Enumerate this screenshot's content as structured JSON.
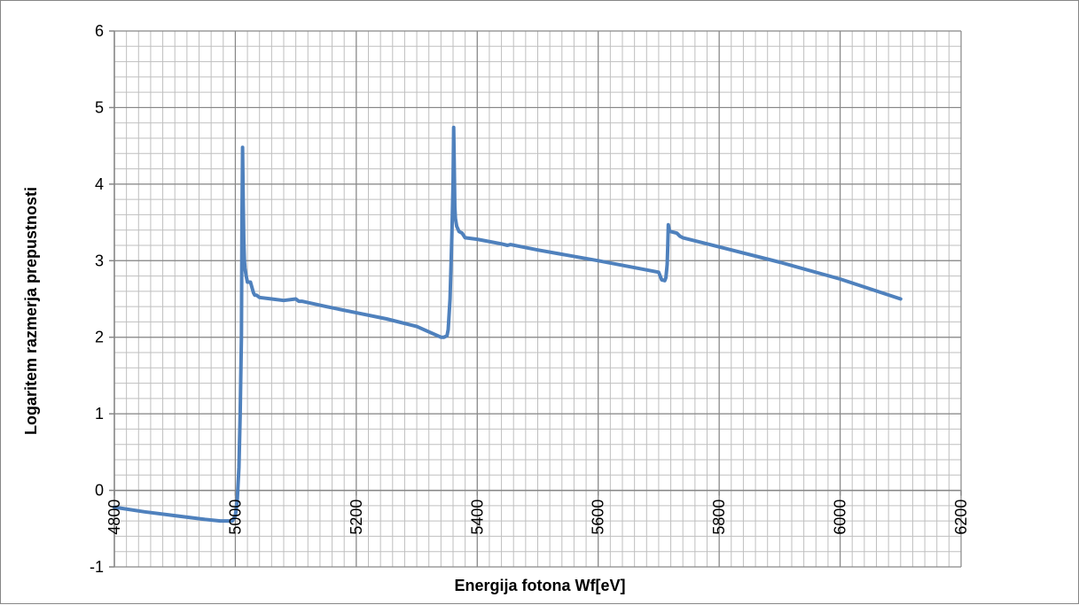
{
  "chart_data": {
    "type": "line",
    "title": "",
    "xlabel": "Energija fotona Wf[eV]",
    "ylabel": "Logaritem razmerja prepustnosti",
    "xlim": [
      4800,
      6200
    ],
    "ylim": [
      -1,
      6
    ],
    "x_major_ticks": [
      4800,
      5000,
      5200,
      5400,
      5600,
      5800,
      6000,
      6200
    ],
    "y_major_ticks": [
      -1,
      0,
      1,
      2,
      3,
      4,
      5,
      6
    ],
    "x_minor_step": 20,
    "y_minor_step": 0.2,
    "grid": "major and minor",
    "legend": "none",
    "series_color": "#4F81BD",
    "series": [
      {
        "x": [
          4800,
          4850,
          4900,
          4950,
          4975,
          4995,
          5000,
          5003,
          5006,
          5008,
          5010,
          5011,
          5012,
          5013,
          5014,
          5015,
          5016,
          5018,
          5020,
          5025,
          5030,
          5032,
          5035,
          5040,
          5060,
          5080,
          5100,
          5105,
          5110,
          5150,
          5200,
          5250,
          5300,
          5340,
          5345,
          5350,
          5352,
          5355,
          5358,
          5360,
          5361,
          5362,
          5363,
          5364,
          5366,
          5370,
          5375,
          5380,
          5400,
          5440,
          5450,
          5455,
          5500,
          5600,
          5700,
          5705,
          5710,
          5712,
          5714,
          5715,
          5716,
          5718,
          5720,
          5730,
          5735,
          5740,
          5800,
          5900,
          6000,
          6100
        ],
        "y": [
          -0.22,
          -0.28,
          -0.33,
          -0.38,
          -0.4,
          -0.4,
          -0.33,
          -0.15,
          0.3,
          1.0,
          2.0,
          3.5,
          4.48,
          3.8,
          3.25,
          3.0,
          2.9,
          2.8,
          2.72,
          2.72,
          2.58,
          2.55,
          2.55,
          2.52,
          2.5,
          2.48,
          2.5,
          2.47,
          2.47,
          2.4,
          2.32,
          2.24,
          2.14,
          2.0,
          2.0,
          2.02,
          2.1,
          2.5,
          3.3,
          4.0,
          4.74,
          4.2,
          3.7,
          3.55,
          3.45,
          3.38,
          3.36,
          3.3,
          3.28,
          3.22,
          3.2,
          3.21,
          3.14,
          3.0,
          2.85,
          2.75,
          2.74,
          2.78,
          2.95,
          3.2,
          3.47,
          3.38,
          3.38,
          3.36,
          3.32,
          3.3,
          3.18,
          2.98,
          2.76,
          2.5
        ]
      }
    ]
  }
}
